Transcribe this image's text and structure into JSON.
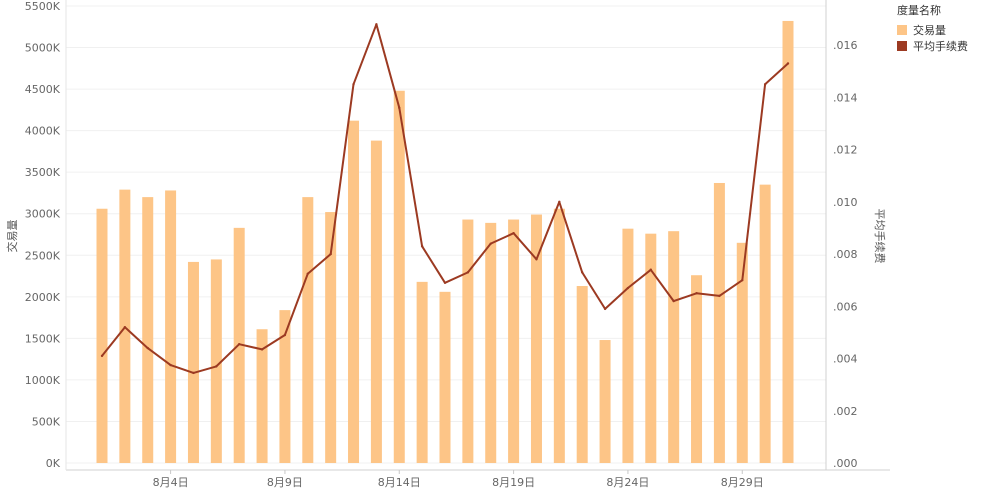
{
  "chart_data": {
    "type": "bar+line",
    "title": "",
    "x": [
      "8/1",
      "8/2",
      "8/3",
      "8/4",
      "8/5",
      "8/6",
      "8/7",
      "8/8",
      "8/9",
      "8/10",
      "8/11",
      "8/12",
      "8/13",
      "8/14",
      "8/15",
      "8/16",
      "8/17",
      "8/18",
      "8/19",
      "8/20",
      "8/21",
      "8/22",
      "8/23",
      "8/24",
      "8/25",
      "8/26",
      "8/27",
      "8/28",
      "8/29",
      "8/30",
      "8/31"
    ],
    "x_tick_labels": [
      {
        "index": 3,
        "label": "8月4日"
      },
      {
        "index": 8,
        "label": "8月9日"
      },
      {
        "index": 13,
        "label": "8月14日"
      },
      {
        "index": 18,
        "label": "8月19日"
      },
      {
        "index": 23,
        "label": "8月24日"
      },
      {
        "index": 28,
        "label": "8月29日"
      }
    ],
    "left_axis": {
      "label": "交易量",
      "range": [
        0,
        5500000
      ],
      "ticks": [
        {
          "value": 0,
          "label": "0K"
        },
        {
          "value": 500000,
          "label": "500K"
        },
        {
          "value": 1000000,
          "label": "1000K"
        },
        {
          "value": 1500000,
          "label": "1500K"
        },
        {
          "value": 2000000,
          "label": "2000K"
        },
        {
          "value": 2500000,
          "label": "2500K"
        },
        {
          "value": 3000000,
          "label": "3000K"
        },
        {
          "value": 3500000,
          "label": "3500K"
        },
        {
          "value": 4000000,
          "label": "4000K"
        },
        {
          "value": 4500000,
          "label": "4500K"
        },
        {
          "value": 5000000,
          "label": "5000K"
        },
        {
          "value": 5500000,
          "label": "5500K"
        }
      ]
    },
    "right_axis": {
      "label": "平均手续费",
      "range": [
        0,
        0.0175
      ],
      "ticks": [
        {
          "value": 0,
          "label": ".000"
        },
        {
          "value": 0.002,
          "label": ".002"
        },
        {
          "value": 0.004,
          "label": ".004"
        },
        {
          "value": 0.006,
          "label": ".006"
        },
        {
          "value": 0.008,
          "label": ".008"
        },
        {
          "value": 0.01,
          "label": ".010"
        },
        {
          "value": 0.012,
          "label": ".012"
        },
        {
          "value": 0.014,
          "label": ".014"
        },
        {
          "value": 0.016,
          "label": ".016"
        }
      ]
    },
    "series": [
      {
        "name": "交易量",
        "kind": "bar",
        "axis": "left",
        "color": "#FDC587",
        "values": [
          3060000,
          3290000,
          3200000,
          3280000,
          2420000,
          2450000,
          2830000,
          1610000,
          1840000,
          3200000,
          3020000,
          4120000,
          3880000,
          4480000,
          2180000,
          2060000,
          2930000,
          2890000,
          2930000,
          2990000,
          3060000,
          2130000,
          1480000,
          2820000,
          2760000,
          2790000,
          2260000,
          3370000,
          2650000,
          3350000,
          5320000
        ]
      },
      {
        "name": "平均手续费",
        "kind": "line",
        "axis": "right",
        "color": "#9C3A22",
        "values": [
          0.0041,
          0.0052,
          0.0044,
          0.00375,
          0.00345,
          0.0037,
          0.00455,
          0.00435,
          0.0049,
          0.00725,
          0.008,
          0.0145,
          0.0168,
          0.0136,
          0.0083,
          0.0069,
          0.0073,
          0.0084,
          0.0088,
          0.0078,
          0.01,
          0.0073,
          0.0059,
          0.0067,
          0.0074,
          0.0062,
          0.0065,
          0.0064,
          0.007,
          0.0145,
          0.0153
        ]
      }
    ],
    "legend": {
      "title": "度量名称",
      "position": "top-right"
    },
    "grid": true
  }
}
